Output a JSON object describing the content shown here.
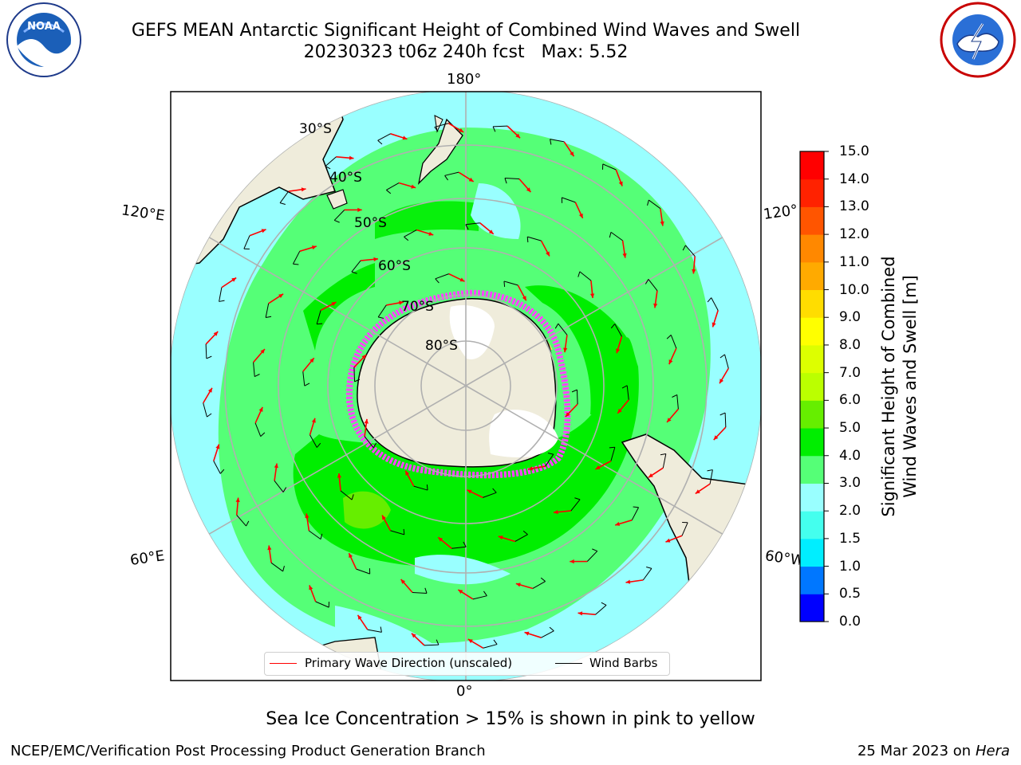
{
  "header": {
    "title_line1": "GEFS MEAN Antarctic Significant Height of Combined Wind Waves and Swell",
    "title_line2": "20230323 t06z 240h fcst   Max: 5.52"
  },
  "logos": {
    "left": {
      "name": "NOAA",
      "text": "NOAA",
      "ring_text": "NATIONAL OCEANIC AND ATMOSPHERIC ADMINISTRATION · U.S. DEPARTMENT OF COMMERCE"
    },
    "right": {
      "name": "National Weather Service",
      "ring_text": "NATIONAL WEATHER SERVICE"
    }
  },
  "map": {
    "longitude_labels": {
      "top": "180°",
      "bottom": "0°",
      "upper_left": "120°E",
      "upper_right": "120°W",
      "lower_left": "60°E",
      "lower_right": "60°W"
    },
    "latitude_labels": [
      "30°S",
      "40°S",
      "50°S",
      "60°S",
      "70°S",
      "80°S"
    ],
    "legend": {
      "wave_label": "Primary Wave Direction (unscaled)",
      "wave_color": "#ff0000",
      "barb_label": "Wind Barbs",
      "barb_color": "#000000"
    },
    "colors": {
      "land": "#efecdb",
      "antarctic_ice_shelf": "#ffffff",
      "sea_ice": "#ff44ff",
      "outside": "#ffffff"
    }
  },
  "colorbar": {
    "label_line1": "Significant Height of Combined",
    "label_line2": "Wind Waves and Swell [m]",
    "ticks": [
      "0.0",
      "0.5",
      "1.0",
      "1.5",
      "2.0",
      "3.0",
      "4.0",
      "5.0",
      "6.0",
      "7.0",
      "8.0",
      "9.0",
      "10.0",
      "11.0",
      "12.0",
      "13.0",
      "14.0",
      "15.0"
    ],
    "colors": [
      "#0000ff",
      "#0077ff",
      "#00eeff",
      "#44ffee",
      "#99ffff",
      "#55ff77",
      "#00ee00",
      "#66ee00",
      "#bbff00",
      "#ddff00",
      "#ffff00",
      "#ffdd00",
      "#ffaa00",
      "#ff8800",
      "#ff5500",
      "#ff2200",
      "#ff0000"
    ]
  },
  "chart_data": {
    "type": "map",
    "projection": "south polar stereographic",
    "variable": "Significant Height of Combined Wind Waves and Swell",
    "units": "m",
    "max_value": 5.52,
    "bins": [
      0.0,
      0.5,
      1.0,
      1.5,
      2.0,
      3.0,
      4.0,
      5.0,
      6.0,
      7.0,
      8.0,
      9.0,
      10.0,
      11.0,
      12.0,
      13.0,
      14.0,
      15.0
    ]
  },
  "notes": {
    "sea_ice": "Sea Ice Concentration > 15% is shown in pink to yellow"
  },
  "footer": {
    "left": "NCEP/EMC/Verification Post Processing Product Generation Branch",
    "right_date": "25 Mar 2023 on",
    "right_host": "Hera"
  }
}
